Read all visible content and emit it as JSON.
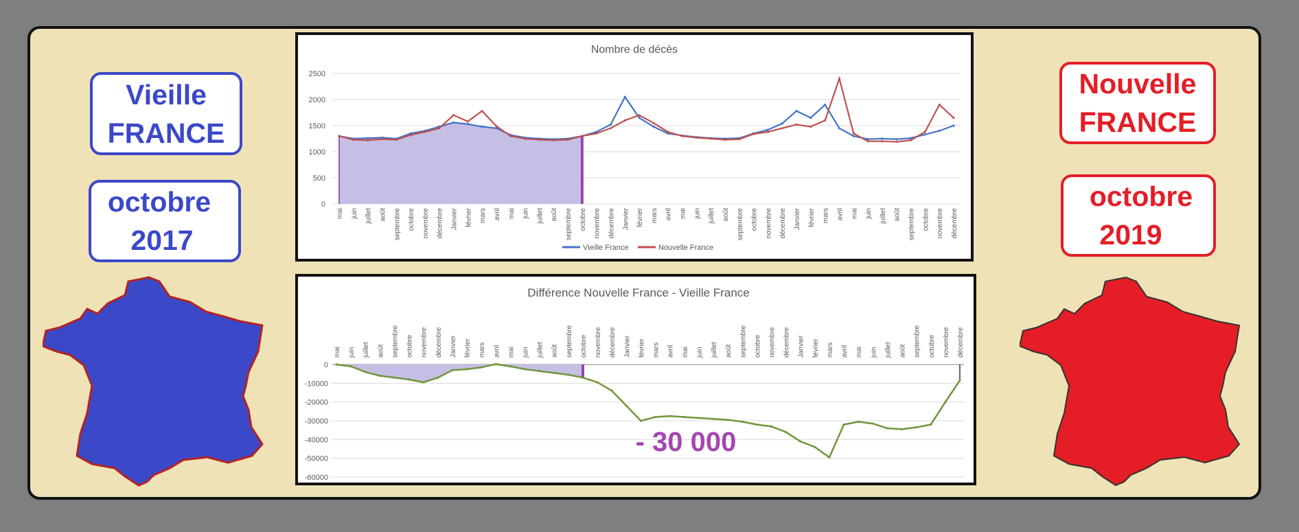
{
  "left": {
    "country": "Vieille",
    "country2": "FRANCE",
    "month": "octobre",
    "year": "2017",
    "color": "#3b48c8"
  },
  "right": {
    "country": "Nouvelle",
    "country2": "FRANCE",
    "month": "octobre",
    "year": "2019",
    "color": "#e41d26"
  },
  "chart_data": [
    {
      "type": "line",
      "title": "Nombre de décès",
      "ylim": [
        0,
        2500
      ],
      "yticks": [
        0,
        500,
        1000,
        1500,
        2000,
        2500
      ],
      "categories": [
        "mai",
        "juin",
        "juillet",
        "août",
        "septembre",
        "octobre",
        "novembre",
        "décembre",
        "Janvier",
        "février",
        "mars",
        "avril",
        "mai",
        "juin",
        "juillet",
        "août",
        "septembre",
        "octobre",
        "novembre",
        "décembre",
        "Janvier",
        "février",
        "mars",
        "avril",
        "mai",
        "juin",
        "juillet",
        "août",
        "septembre",
        "octobre",
        "novembre",
        "décembre",
        "Janvier",
        "février",
        "mars",
        "avril",
        "mai",
        "juin",
        "juillet",
        "août",
        "septembre",
        "octobre",
        "novembre",
        "décembre"
      ],
      "series": [
        {
          "name": "Vieille France",
          "color": "#4472c4",
          "values": [
            1300,
            1250,
            1260,
            1270,
            1250,
            1350,
            1400,
            1480,
            1560,
            1530,
            1480,
            1450,
            1320,
            1270,
            1250,
            1240,
            1250,
            1300,
            1380,
            1520,
            2050,
            1650,
            1480,
            1350,
            1310,
            1280,
            1260,
            1250,
            1260,
            1350,
            1420,
            1540,
            1780,
            1650,
            1900,
            1450,
            1300,
            1240,
            1250,
            1240,
            1260,
            1330,
            1400,
            1500
          ]
        },
        {
          "name": "Nouvelle France",
          "color": "#c0504d",
          "values": [
            1300,
            1230,
            1220,
            1240,
            1230,
            1320,
            1380,
            1450,
            1700,
            1580,
            1780,
            1490,
            1300,
            1250,
            1230,
            1220,
            1230,
            1300,
            1350,
            1450,
            1600,
            1700,
            1550,
            1380,
            1300,
            1270,
            1250,
            1230,
            1240,
            1340,
            1380,
            1450,
            1520,
            1480,
            1600,
            2400,
            1350,
            1200,
            1200,
            1190,
            1220,
            1380,
            1900,
            1650
          ]
        }
      ],
      "shaded_until_category": "octobre",
      "legend_position": "bottom",
      "grid": true
    },
    {
      "type": "area",
      "title": "Différence Nouvelle France - Vieille France",
      "ylim": [
        -60000,
        0
      ],
      "yticks": [
        0,
        -10000,
        -20000,
        -30000,
        -40000,
        -50000,
        -60000
      ],
      "categories": [
        "mai",
        "juin",
        "juillet",
        "août",
        "septembre",
        "octobre",
        "novembre",
        "décembre",
        "Janvier",
        "février",
        "mars",
        "avril",
        "mai",
        "juin",
        "juillet",
        "août",
        "septembre",
        "octobre",
        "novembre",
        "décembre",
        "Janvier",
        "février",
        "mars",
        "avril",
        "mai",
        "juin",
        "juillet",
        "août",
        "septembre",
        "octobre",
        "novembre",
        "décembre",
        "Janvier",
        "février",
        "mars",
        "avril",
        "mai",
        "juin",
        "juillet",
        "août",
        "septembre",
        "octobre",
        "novembre",
        "décembre"
      ],
      "values": [
        0,
        -1000,
        -4000,
        -6000,
        -7000,
        -8000,
        -9500,
        -7000,
        -3000,
        -2500,
        -1500,
        200,
        -1000,
        -2500,
        -3500,
        -4500,
        -5500,
        -7000,
        -9500,
        -14000,
        -22000,
        -30000,
        -28000,
        -27500,
        -28000,
        -28500,
        -29000,
        -29500,
        -30500,
        -32000,
        -33000,
        -36000,
        -41000,
        -44000,
        -49500,
        -32000,
        -30500,
        -31500,
        -34000,
        -34500,
        -33500,
        -32000,
        -20000,
        -8500
      ],
      "series_color": "#70963a",
      "shaded_until_category": "octobre",
      "annotation": "- 30 000",
      "grid": true
    }
  ]
}
